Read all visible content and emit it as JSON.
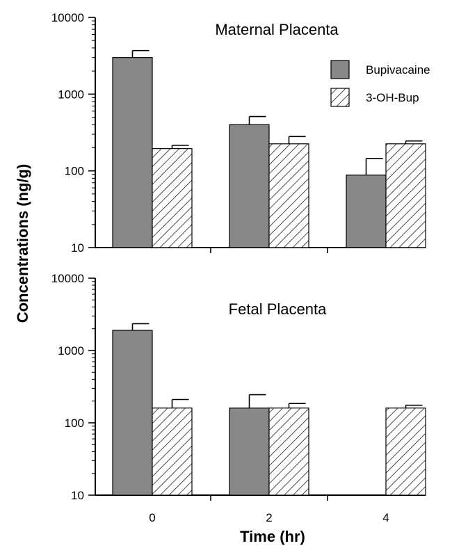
{
  "chart_data": [
    {
      "type": "bar",
      "title": "Maternal Placenta",
      "y_scale": "log",
      "ylim": [
        10,
        10000
      ],
      "y_ticks": [
        "10",
        "100",
        "1000",
        "10000"
      ],
      "categories": [
        "0",
        "2",
        "4"
      ],
      "series": [
        {
          "name": "Bupivacaine",
          "values": [
            3000,
            400,
            88
          ],
          "error_upper": [
            3700,
            510,
            145
          ],
          "color": "#888888",
          "pattern": "solid"
        },
        {
          "name": "3-OH-Bup",
          "values": [
            195,
            225,
            225
          ],
          "error_upper": [
            215,
            280,
            245
          ],
          "color": "#ffffff",
          "pattern": "hatched"
        }
      ],
      "legend_position": "top-right"
    },
    {
      "type": "bar",
      "title": "Fetal Placenta",
      "y_scale": "log",
      "ylim": [
        10,
        10000
      ],
      "y_ticks": [
        "10",
        "100",
        "1000",
        "10000"
      ],
      "categories": [
        "0",
        "2",
        "4"
      ],
      "series": [
        {
          "name": "Bupivacaine",
          "values": [
            1900,
            160,
            null
          ],
          "error_upper": [
            2350,
            245,
            null
          ],
          "color": "#888888",
          "pattern": "solid"
        },
        {
          "name": "3-OH-Bup",
          "values": [
            160,
            160,
            160
          ],
          "error_upper": [
            210,
            185,
            175
          ],
          "color": "#ffffff",
          "pattern": "hatched"
        }
      ]
    }
  ],
  "axes": {
    "ylabel": "Concentrations  (ng/g)",
    "xlabel": "Time  (hr)"
  }
}
